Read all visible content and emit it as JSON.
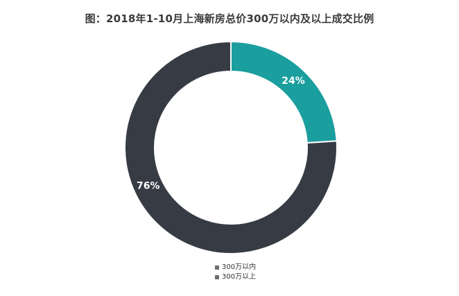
{
  "chart_data": {
    "type": "pie",
    "title": "图：2018年1-10月上海新房总价300万以内及以上成交比例",
    "categories": [
      "300万以内",
      "300万以上"
    ],
    "values": [
      24,
      76
    ],
    "labels": [
      "24%",
      "76%"
    ],
    "colors": [
      "#1b9e9e",
      "#363b44"
    ],
    "donut": true,
    "legend_position": "bottom-center"
  }
}
